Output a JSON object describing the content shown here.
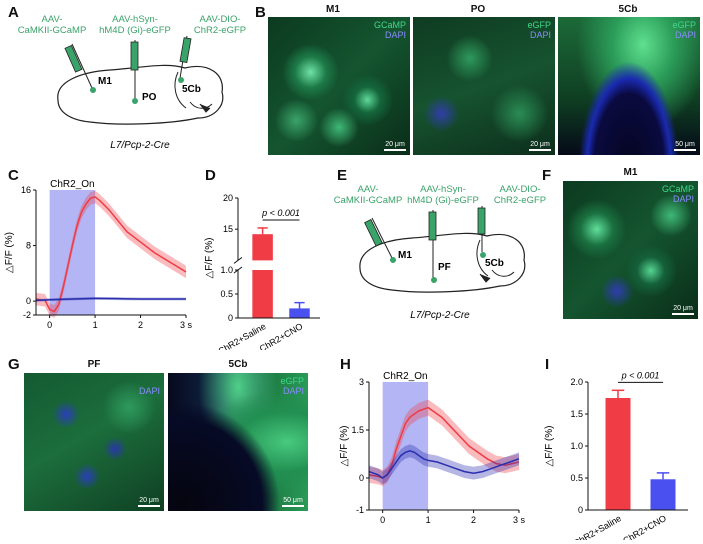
{
  "panels": {
    "A": {
      "label": "A",
      "injections": [
        "AAV-\nCaMKII-GCaMP",
        "AAV-hSyn-\nhM4D (Gi)-eGFP",
        "AAV-DIO-\nChR2-eGFP"
      ],
      "regions": [
        "M1",
        "PO",
        "5Cb"
      ],
      "mouse_line": "L7/Pcp-2-Cre"
    },
    "B": {
      "label": "B",
      "images": [
        {
          "title": "M1",
          "channels": [
            "GCaMP",
            "DAPI"
          ],
          "scale": "20 μm"
        },
        {
          "title": "PO",
          "channels": [
            "eGFP",
            "DAPI"
          ],
          "scale": "20 μm"
        },
        {
          "title": "5Cb",
          "channels": [
            "eGFP",
            "DAPI"
          ],
          "scale": "50 μm"
        }
      ]
    },
    "C": {
      "label": "C",
      "stim_label": "ChR2_On"
    },
    "D": {
      "label": "D",
      "pvalue": "p < 0.001"
    },
    "E": {
      "label": "E",
      "injections": [
        "AAV-\nCaMKII-GCaMP",
        "AAV-hSyn-\nhM4D (Gi)-eGFP",
        "AAV-DIO-\nChR2-eGFP"
      ],
      "regions": [
        "M1",
        "PF",
        "5Cb"
      ],
      "mouse_line": "L7/Pcp-2-Cre"
    },
    "F": {
      "label": "F",
      "title": "M1",
      "channels": [
        "GCaMP",
        "DAPI"
      ],
      "scale": "20 μm"
    },
    "G": {
      "label": "G",
      "images": [
        {
          "title": "PF",
          "channels": [
            "DAPI"
          ],
          "scale": "20 μm"
        },
        {
          "title": "5Cb",
          "channels": [
            "eGFP",
            "DAPI"
          ],
          "scale": "50 μm"
        }
      ]
    },
    "H": {
      "label": "H",
      "stim_label": "ChR2_On"
    },
    "I": {
      "label": "I",
      "pvalue": "p < 0.001"
    }
  },
  "colors": {
    "saline": "#f03c45",
    "cno": "#2a2fb0",
    "stim": "#9b9cf0",
    "green": "#3aa36a"
  },
  "chart_data": [
    {
      "id": "C",
      "type": "line",
      "ylabel": "△F/F (%)",
      "xlabel": "",
      "xlim": [
        -0.3,
        3
      ],
      "ylim": [
        -2,
        16
      ],
      "xticks": [
        0,
        1,
        2,
        3
      ],
      "xtick_labels": [
        "0",
        "1",
        "2",
        "3 s"
      ],
      "yticks": [
        -2,
        0,
        8,
        16
      ],
      "ytick_labels": [
        "-2",
        "0",
        "8",
        "16"
      ],
      "stim_window": [
        0,
        1
      ],
      "series": [
        {
          "color": "#f03c45",
          "band": 0.9,
          "x": [
            -0.3,
            -0.1,
            0,
            0.1,
            0.2,
            0.3,
            0.4,
            0.5,
            0.6,
            0.7,
            0.8,
            0.9,
            1.0,
            1.1,
            1.3,
            1.5,
            1.7,
            2.0,
            2.3,
            2.6,
            2.8,
            3.0
          ],
          "y": [
            0.3,
            0.1,
            -1.2,
            -1.5,
            -0.5,
            2.0,
            5.0,
            8.0,
            10.8,
            12.8,
            14.0,
            14.8,
            15.0,
            14.5,
            13.2,
            11.6,
            10.0,
            8.5,
            7.0,
            5.8,
            5.0,
            4.2
          ]
        },
        {
          "color": "#2a2fb0",
          "band": 0.2,
          "x": [
            -0.3,
            0,
            0.5,
            1.0,
            1.5,
            2.0,
            2.5,
            3.0
          ],
          "y": [
            0.1,
            0.2,
            0.3,
            0.4,
            0.35,
            0.3,
            0.3,
            0.3
          ]
        }
      ]
    },
    {
      "id": "D",
      "type": "bar",
      "categories": [
        "ChR2+Saline",
        "ChR2+CNO"
      ],
      "values": [
        14.2,
        0.2
      ],
      "errors": [
        1.0,
        0.12
      ],
      "colors": [
        "#f03c45",
        "#4a4ff0"
      ],
      "ylabel": "△F/F (%)",
      "axis_break": [
        1.0,
        10
      ],
      "yticks": [
        0,
        0.5,
        1.0,
        15,
        20
      ],
      "ytick_labels": [
        "0",
        "0.5",
        "1.0",
        "15",
        "20"
      ]
    },
    {
      "id": "H",
      "type": "line",
      "ylabel": "△F/F (%)",
      "xlabel": "",
      "xlim": [
        -0.3,
        3
      ],
      "ylim": [
        -1,
        3
      ],
      "xticks": [
        0,
        1,
        2,
        3
      ],
      "xtick_labels": [
        "0",
        "1",
        "2",
        "3 s"
      ],
      "yticks": [
        -1,
        0,
        1.5,
        3
      ],
      "ytick_labels": [
        "-1",
        "0",
        "1.5",
        "3"
      ],
      "stim_window": [
        0,
        1
      ],
      "series": [
        {
          "color": "#f03c45",
          "band": 0.25,
          "x": [
            -0.3,
            -0.1,
            0,
            0.1,
            0.2,
            0.3,
            0.4,
            0.5,
            0.6,
            0.7,
            0.8,
            0.9,
            1.0,
            1.1,
            1.3,
            1.5,
            1.7,
            1.9,
            2.1,
            2.3,
            2.5,
            2.7,
            3.0
          ],
          "y": [
            0.1,
            0.05,
            0.0,
            0.1,
            0.4,
            0.9,
            1.3,
            1.7,
            1.9,
            2.0,
            2.1,
            2.15,
            2.2,
            2.1,
            1.9,
            1.6,
            1.3,
            1.0,
            0.8,
            0.6,
            0.45,
            0.4,
            0.5
          ]
        },
        {
          "color": "#2a2fb0",
          "band": 0.2,
          "x": [
            -0.3,
            -0.1,
            0,
            0.1,
            0.2,
            0.3,
            0.4,
            0.5,
            0.6,
            0.7,
            0.8,
            0.9,
            1.0,
            1.2,
            1.4,
            1.6,
            1.8,
            2.0,
            2.2,
            2.4,
            2.6,
            2.8,
            3.0
          ],
          "y": [
            0.2,
            0.1,
            0.0,
            0.1,
            0.3,
            0.5,
            0.7,
            0.8,
            0.85,
            0.8,
            0.7,
            0.6,
            0.55,
            0.5,
            0.4,
            0.3,
            0.2,
            0.15,
            0.2,
            0.3,
            0.4,
            0.5,
            0.6
          ]
        }
      ]
    },
    {
      "id": "I",
      "type": "bar",
      "categories": [
        "ChR2+Saline",
        "ChR2+CNO"
      ],
      "values": [
        1.75,
        0.48
      ],
      "errors": [
        0.12,
        0.1
      ],
      "colors": [
        "#f03c45",
        "#4a4ff0"
      ],
      "ylabel": "△F/F (%)",
      "ylim": [
        0,
        2.0
      ],
      "yticks": [
        0,
        0.5,
        1.0,
        1.5,
        2.0
      ],
      "ytick_labels": [
        "0",
        "0.5",
        "1.0",
        "1.5",
        "2.0"
      ]
    }
  ]
}
